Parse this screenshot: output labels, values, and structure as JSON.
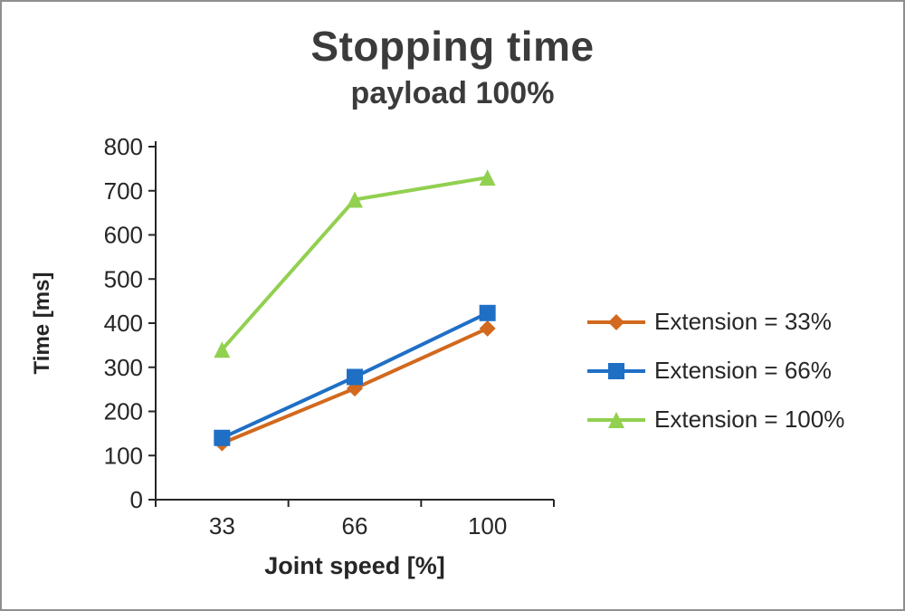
{
  "title": "Stopping time",
  "subtitle": "payload 100%",
  "chart_data": {
    "type": "line",
    "title": "Stopping time",
    "subtitle": "payload 100%",
    "xlabel": "Joint speed [%]",
    "ylabel": "Time [ms]",
    "categories": [
      "33",
      "66",
      "100"
    ],
    "y_ticks": [
      0,
      100,
      200,
      300,
      400,
      500,
      600,
      700,
      800
    ],
    "ylim": [
      0,
      800
    ],
    "grid": false,
    "legend_position": "right",
    "axis_color": "#262626",
    "series": [
      {
        "name": "Extension = 33%",
        "color": "#D2691E",
        "marker": "diamond",
        "values": [
          128,
          252,
          388
        ]
      },
      {
        "name": "Extension = 66%",
        "color": "#1F6FC5",
        "marker": "square",
        "values": [
          140,
          278,
          423
        ]
      },
      {
        "name": "Extension = 100%",
        "color": "#92D050",
        "marker": "triangle",
        "values": [
          340,
          680,
          730
        ]
      }
    ]
  }
}
